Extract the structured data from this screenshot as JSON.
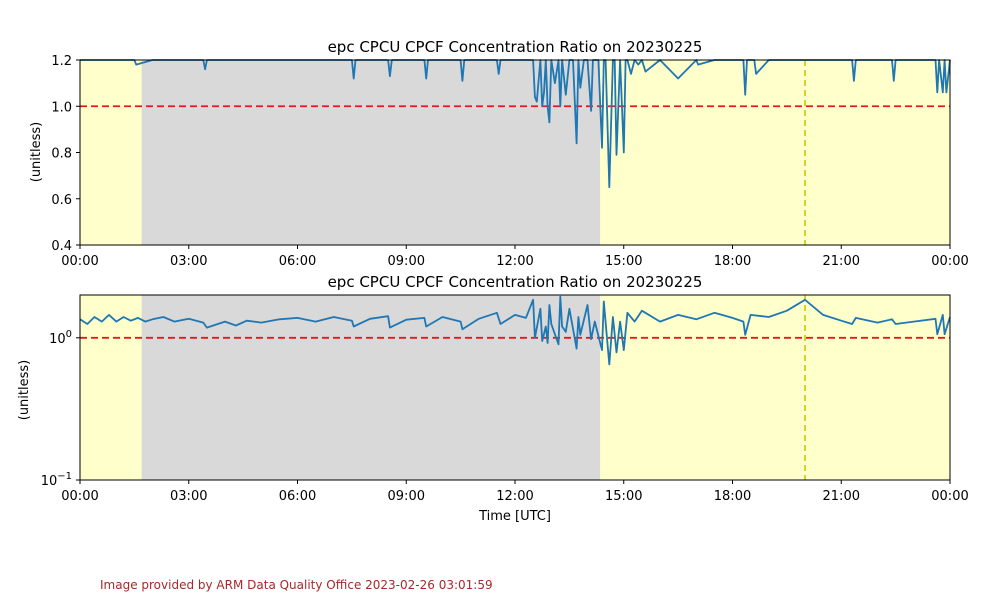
{
  "chart_data": [
    {
      "type": "line",
      "title": "epc CPCU CPCF Concentration Ratio on 20230225",
      "xlabel": "",
      "ylabel": "(unitless)",
      "yscale": "linear",
      "xlim_hours": [
        0,
        24
      ],
      "ylim": [
        0.4,
        1.2
      ],
      "xticks": [
        {
          "hour": 0,
          "label": "00:00"
        },
        {
          "hour": 3,
          "label": "03:00"
        },
        {
          "hour": 6,
          "label": "06:00"
        },
        {
          "hour": 9,
          "label": "09:00"
        },
        {
          "hour": 12,
          "label": "12:00"
        },
        {
          "hour": 15,
          "label": "15:00"
        },
        {
          "hour": 18,
          "label": "18:00"
        },
        {
          "hour": 21,
          "label": "21:00"
        },
        {
          "hour": 24,
          "label": "00:00"
        }
      ],
      "yticks": [
        {
          "value": 0.4,
          "label": "0.4"
        },
        {
          "value": 0.6,
          "label": "0.6"
        },
        {
          "value": 0.8,
          "label": "0.8"
        },
        {
          "value": 1.0,
          "label": "1.0"
        },
        {
          "value": 1.2,
          "label": "1.2"
        }
      ],
      "reference_line": {
        "value": 1.0,
        "color": "#e31a1c",
        "style": "dashed"
      },
      "vertical_marker": {
        "hour": 20.0,
        "color": "#c8c800",
        "style": "dashed"
      },
      "shaded_regions": [
        {
          "start_hour": 0,
          "end_hour": 1.7,
          "color": "#ffffcc"
        },
        {
          "start_hour": 1.7,
          "end_hour": 14.35,
          "color": "#d9d9d9"
        },
        {
          "start_hour": 14.35,
          "end_hour": 24,
          "color": "#ffffcc"
        }
      ],
      "grid": false,
      "series": [
        {
          "color": "#1f77b4",
          "x": [
            0.0,
            0.5,
            1.0,
            1.5,
            1.5,
            1.55,
            2.0,
            3.0,
            3.4,
            3.45,
            3.5,
            4.0,
            4.5,
            5.0,
            6.0,
            7.0,
            7.5,
            7.55,
            7.6,
            8.0,
            8.5,
            8.55,
            8.6,
            9.0,
            9.5,
            9.55,
            9.6,
            10.0,
            10.5,
            10.55,
            10.6,
            11.0,
            11.5,
            11.55,
            11.6,
            12.0,
            12.5,
            12.55,
            12.6,
            12.7,
            12.75,
            12.8,
            12.85,
            12.9,
            12.95,
            13.0,
            13.1,
            13.2,
            13.25,
            13.3,
            13.4,
            13.5,
            13.6,
            13.7,
            13.75,
            13.8,
            13.9,
            14.0,
            14.1,
            14.15,
            14.2,
            14.3,
            14.4,
            14.45,
            14.5,
            14.6,
            14.7,
            14.75,
            14.8,
            14.9,
            15.0,
            15.05,
            15.1,
            15.2,
            15.3,
            15.4,
            15.5,
            15.6,
            16.0,
            16.5,
            17.0,
            17.05,
            17.5,
            18.0,
            18.3,
            18.35,
            18.4,
            18.6,
            18.65,
            19.0,
            19.5,
            20.0,
            21.0,
            21.3,
            21.35,
            21.4,
            22.0,
            22.4,
            22.45,
            22.5,
            23.0,
            23.6,
            23.65,
            23.7,
            23.8,
            23.85,
            23.9,
            24.0
          ],
          "values": [
            1.2,
            1.2,
            1.2,
            1.2,
            1.2,
            1.18,
            1.2,
            1.2,
            1.2,
            1.16,
            1.2,
            1.2,
            1.2,
            1.2,
            1.2,
            1.2,
            1.2,
            1.12,
            1.2,
            1.2,
            1.2,
            1.13,
            1.2,
            1.2,
            1.2,
            1.12,
            1.2,
            1.2,
            1.2,
            1.11,
            1.2,
            1.2,
            1.2,
            1.14,
            1.2,
            1.2,
            1.2,
            1.04,
            1.02,
            1.2,
            1.0,
            1.06,
            1.2,
            1.0,
            0.93,
            1.2,
            1.1,
            1.2,
            1.0,
            1.2,
            1.05,
            1.2,
            1.2,
            0.84,
            1.2,
            1.08,
            1.2,
            1.2,
            0.98,
            1.2,
            1.2,
            1.2,
            0.82,
            1.2,
            1.2,
            0.65,
            1.2,
            1.2,
            0.79,
            1.2,
            0.8,
            1.2,
            1.2,
            1.14,
            1.2,
            1.18,
            1.2,
            1.15,
            1.2,
            1.12,
            1.2,
            1.18,
            1.2,
            1.2,
            1.2,
            1.05,
            1.2,
            1.2,
            1.14,
            1.2,
            1.2,
            1.2,
            1.2,
            1.2,
            1.11,
            1.2,
            1.2,
            1.2,
            1.11,
            1.2,
            1.2,
            1.2,
            1.06,
            1.2,
            1.06,
            1.2,
            1.06,
            1.2
          ]
        }
      ]
    },
    {
      "type": "line",
      "title": "epc CPCU CPCF Concentration Ratio on 20230225",
      "xlabel": "Time [UTC]",
      "ylabel": "(unitless)",
      "yscale": "log",
      "xlim_hours": [
        0,
        24
      ],
      "ylim": [
        0.1,
        2.0
      ],
      "xticks": [
        {
          "hour": 0,
          "label": "00:00"
        },
        {
          "hour": 3,
          "label": "03:00"
        },
        {
          "hour": 6,
          "label": "06:00"
        },
        {
          "hour": 9,
          "label": "09:00"
        },
        {
          "hour": 12,
          "label": "12:00"
        },
        {
          "hour": 15,
          "label": "15:00"
        },
        {
          "hour": 18,
          "label": "18:00"
        },
        {
          "hour": 21,
          "label": "21:00"
        },
        {
          "hour": 24,
          "label": "00:00"
        }
      ],
      "yticks": [
        {
          "value": 0.1,
          "base": "10",
          "exp": "−1"
        },
        {
          "value": 1.0,
          "base": "10",
          "exp": "0"
        }
      ],
      "reference_line": {
        "value": 1.0,
        "color": "#e31a1c",
        "style": "dashed"
      },
      "vertical_marker": {
        "hour": 20.0,
        "color": "#c8c800",
        "style": "dashed"
      },
      "shaded_regions": [
        {
          "start_hour": 0,
          "end_hour": 1.7,
          "color": "#ffffcc"
        },
        {
          "start_hour": 1.7,
          "end_hour": 14.35,
          "color": "#d9d9d9"
        },
        {
          "start_hour": 14.35,
          "end_hour": 24,
          "color": "#ffffcc"
        }
      ],
      "grid": false,
      "series": [
        {
          "color": "#1f77b4",
          "x": [
            0.0,
            0.2,
            0.4,
            0.6,
            0.8,
            1.0,
            1.2,
            1.4,
            1.6,
            1.8,
            2.0,
            2.3,
            2.6,
            3.0,
            3.4,
            3.5,
            4.0,
            4.3,
            4.6,
            5.0,
            5.5,
            6.0,
            6.5,
            7.0,
            7.5,
            7.55,
            8.0,
            8.5,
            8.55,
            9.0,
            9.5,
            9.55,
            10.0,
            10.5,
            10.55,
            11.0,
            11.5,
            11.6,
            12.0,
            12.3,
            12.5,
            12.55,
            12.7,
            12.75,
            12.85,
            12.9,
            12.95,
            13.0,
            13.2,
            13.25,
            13.3,
            13.4,
            13.5,
            13.7,
            13.75,
            13.8,
            14.0,
            14.1,
            14.2,
            14.4,
            14.45,
            14.6,
            14.7,
            14.8,
            14.9,
            15.0,
            15.1,
            15.3,
            15.5,
            16.0,
            16.5,
            17.0,
            17.5,
            18.0,
            18.3,
            18.35,
            18.5,
            19.0,
            19.5,
            20.0,
            20.5,
            21.0,
            21.3,
            21.4,
            22.0,
            22.4,
            22.5,
            23.0,
            23.6,
            23.65,
            23.8,
            23.85,
            24.0
          ],
          "values": [
            1.35,
            1.25,
            1.4,
            1.3,
            1.45,
            1.3,
            1.4,
            1.32,
            1.38,
            1.3,
            1.35,
            1.4,
            1.3,
            1.36,
            1.28,
            1.18,
            1.3,
            1.22,
            1.32,
            1.28,
            1.35,
            1.38,
            1.3,
            1.4,
            1.32,
            1.2,
            1.36,
            1.42,
            1.18,
            1.34,
            1.38,
            1.2,
            1.4,
            1.3,
            1.15,
            1.36,
            1.5,
            1.25,
            1.45,
            1.38,
            1.85,
            1.0,
            1.6,
            0.95,
            1.2,
            0.92,
            1.7,
            1.25,
            0.9,
            1.95,
            1.2,
            1.1,
            1.6,
            0.84,
            1.4,
            1.05,
            1.7,
            0.98,
            1.3,
            0.82,
            1.8,
            0.65,
            1.4,
            0.79,
            1.3,
            0.82,
            1.5,
            1.3,
            1.55,
            1.3,
            1.45,
            1.35,
            1.5,
            1.38,
            1.3,
            1.05,
            1.45,
            1.4,
            1.55,
            1.85,
            1.45,
            1.32,
            1.25,
            1.38,
            1.28,
            1.35,
            1.25,
            1.3,
            1.36,
            1.06,
            1.45,
            1.06,
            1.4
          ]
        }
      ]
    }
  ],
  "footer": {
    "text": "Image provided by ARM Data Quality Office 2023-02-26 03:01:59",
    "color": "#a52a2a"
  }
}
